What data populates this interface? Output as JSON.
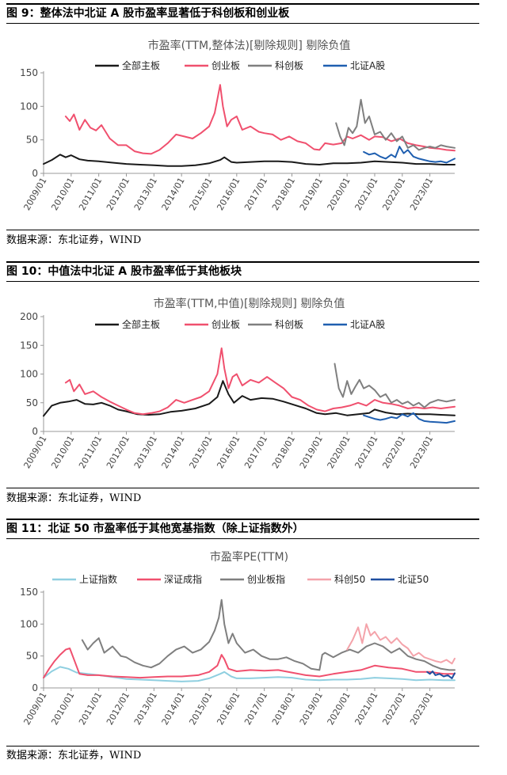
{
  "figures": [
    {
      "caption": "图 9：整体法中北证 A 股市盈率显著低于科创板和创业板",
      "source": "数据来源：东北证券，WIND"
    },
    {
      "caption": "图 10：中值法中北证 A 股市盈率低于其他板块",
      "source": "数据来源：东北证券，WIND"
    },
    {
      "caption": "图 11：北证 50 市盈率低于其他宽基指数（除上证指数外）",
      "source": "数据来源：东北证券，WIND"
    }
  ],
  "chart_data": [
    {
      "type": "line",
      "title": "市盈率(TTM,整体法)[剔除规则] 剔除负值",
      "ylim": [
        0,
        150
      ],
      "yticks": [
        0,
        50,
        100,
        150
      ],
      "x_range": [
        2009.0,
        2023.9
      ],
      "xticks": [
        "2009/01",
        "2010/01",
        "2011/01",
        "2012/01",
        "2013/01",
        "2014/01",
        "2015/01",
        "2016/01",
        "2017/01",
        "2018/01",
        "2019/01",
        "2020/01",
        "2021/01",
        "2022/01",
        "2023/01"
      ],
      "grid": false,
      "legend_position": "top",
      "series": [
        {
          "name": "全部主板",
          "color": "#1a1a1a",
          "x": [
            2009.0,
            2009.3,
            2009.6,
            2009.8,
            2010.0,
            2010.3,
            2010.6,
            2011.0,
            2011.5,
            2012.0,
            2012.5,
            2013.0,
            2013.5,
            2014.0,
            2014.5,
            2015.0,
            2015.4,
            2015.55,
            2015.8,
            2016.0,
            2016.5,
            2017.0,
            2017.5,
            2018.0,
            2018.5,
            2019.0,
            2019.5,
            2020.0,
            2020.5,
            2021.0,
            2021.5,
            2022.0,
            2022.5,
            2023.0,
            2023.5,
            2023.9
          ],
          "y": [
            14,
            20,
            28,
            24,
            27,
            21,
            19,
            18,
            16,
            14,
            13,
            12,
            11,
            11,
            12,
            15,
            20,
            24,
            17,
            16,
            17,
            18,
            18,
            17,
            14,
            13,
            15,
            15,
            16,
            18,
            17,
            16,
            14,
            14,
            13,
            13
          ]
        },
        {
          "name": "创业板",
          "color": "#f0506e",
          "x": [
            2009.8,
            2009.95,
            2010.1,
            2010.3,
            2010.5,
            2010.7,
            2010.9,
            2011.1,
            2011.4,
            2011.7,
            2012.0,
            2012.3,
            2012.6,
            2012.9,
            2013.2,
            2013.5,
            2013.8,
            2014.1,
            2014.4,
            2014.7,
            2015.0,
            2015.2,
            2015.4,
            2015.5,
            2015.65,
            2015.8,
            2016.0,
            2016.2,
            2016.5,
            2016.8,
            2017.0,
            2017.3,
            2017.6,
            2017.9,
            2018.2,
            2018.5,
            2018.8,
            2019.0,
            2019.2,
            2019.5,
            2019.8,
            2020.0,
            2020.2,
            2020.5,
            2020.8,
            2021.0,
            2021.3,
            2021.6,
            2021.9,
            2022.2,
            2022.5,
            2022.8,
            2023.0,
            2023.3,
            2023.6,
            2023.9
          ],
          "y": [
            85,
            78,
            88,
            65,
            80,
            68,
            64,
            72,
            52,
            42,
            42,
            33,
            30,
            29,
            35,
            45,
            58,
            55,
            52,
            60,
            70,
            90,
            132,
            100,
            70,
            80,
            85,
            65,
            70,
            62,
            60,
            58,
            50,
            55,
            48,
            45,
            36,
            35,
            45,
            43,
            45,
            55,
            52,
            57,
            50,
            55,
            54,
            48,
            52,
            45,
            42,
            40,
            38,
            37,
            35,
            34
          ]
        },
        {
          "name": "科创板",
          "color": "#7f7f7f",
          "x": [
            2019.6,
            2019.75,
            2019.9,
            2020.05,
            2020.2,
            2020.35,
            2020.5,
            2020.65,
            2020.8,
            2021.0,
            2021.2,
            2021.4,
            2021.6,
            2021.8,
            2022.0,
            2022.2,
            2022.4,
            2022.6,
            2022.8,
            2023.0,
            2023.2,
            2023.4,
            2023.6,
            2023.9
          ],
          "y": [
            75,
            55,
            42,
            68,
            60,
            70,
            110,
            75,
            85,
            58,
            62,
            50,
            60,
            48,
            55,
            38,
            42,
            35,
            38,
            40,
            38,
            42,
            40,
            38
          ]
        },
        {
          "name": "北证A股",
          "color": "#1f5fb0",
          "x": [
            2020.6,
            2020.8,
            2021.0,
            2021.2,
            2021.4,
            2021.6,
            2021.75,
            2021.9,
            2022.05,
            2022.2,
            2022.4,
            2022.6,
            2022.8,
            2023.0,
            2023.2,
            2023.4,
            2023.6,
            2023.9
          ],
          "y": [
            32,
            28,
            30,
            25,
            22,
            28,
            24,
            40,
            30,
            35,
            25,
            22,
            20,
            18,
            17,
            18,
            16,
            22
          ]
        }
      ]
    },
    {
      "type": "line",
      "title": "市盈率(TTM,中值)[剔除规则] 剔除负值",
      "ylim": [
        0,
        200
      ],
      "yticks": [
        0,
        50,
        100,
        150,
        200
      ],
      "x_range": [
        2009.0,
        2023.9
      ],
      "xticks": [
        "2009/01",
        "2010/01",
        "2011/01",
        "2012/01",
        "2013/01",
        "2014/01",
        "2015/01",
        "2016/01",
        "2017/01",
        "2018/01",
        "2019/01",
        "2020/01",
        "2021/01",
        "2022/01",
        "2023/01"
      ],
      "grid": false,
      "legend_position": "top",
      "series": [
        {
          "name": "全部主板",
          "color": "#1a1a1a",
          "x": [
            2009.0,
            2009.3,
            2009.6,
            2009.9,
            2010.2,
            2010.5,
            2010.8,
            2011.1,
            2011.4,
            2011.7,
            2012.0,
            2012.4,
            2012.8,
            2013.2,
            2013.6,
            2014.0,
            2014.5,
            2015.0,
            2015.3,
            2015.5,
            2015.7,
            2015.9,
            2016.2,
            2016.5,
            2016.9,
            2017.3,
            2017.7,
            2018.1,
            2018.5,
            2018.9,
            2019.2,
            2019.6,
            2020.0,
            2020.4,
            2020.8,
            2021.0,
            2021.4,
            2021.8,
            2022.2,
            2022.6,
            2023.0,
            2023.4,
            2023.9
          ],
          "y": [
            27,
            45,
            50,
            52,
            55,
            48,
            47,
            50,
            45,
            38,
            35,
            30,
            29,
            30,
            34,
            36,
            40,
            48,
            60,
            88,
            65,
            50,
            62,
            55,
            58,
            57,
            52,
            46,
            40,
            32,
            30,
            32,
            28,
            30,
            32,
            38,
            33,
            30,
            31,
            30,
            30,
            29,
            28
          ]
        },
        {
          "name": "创业板",
          "color": "#f0506e",
          "x": [
            2009.8,
            2009.95,
            2010.1,
            2010.3,
            2010.5,
            2010.8,
            2011.1,
            2011.4,
            2011.7,
            2012.0,
            2012.3,
            2012.6,
            2012.9,
            2013.2,
            2013.5,
            2013.8,
            2014.1,
            2014.4,
            2014.7,
            2015.0,
            2015.3,
            2015.45,
            2015.55,
            2015.7,
            2015.85,
            2016.0,
            2016.2,
            2016.5,
            2016.8,
            2017.1,
            2017.4,
            2017.7,
            2018.0,
            2018.3,
            2018.6,
            2018.9,
            2019.2,
            2019.5,
            2019.8,
            2020.1,
            2020.4,
            2020.7,
            2021.0,
            2021.3,
            2021.6,
            2021.9,
            2022.2,
            2022.5,
            2022.8,
            2023.1,
            2023.4,
            2023.7,
            2023.9
          ],
          "y": [
            85,
            90,
            70,
            82,
            65,
            70,
            60,
            52,
            45,
            38,
            32,
            30,
            32,
            35,
            42,
            55,
            50,
            55,
            60,
            70,
            100,
            145,
            110,
            75,
            95,
            100,
            80,
            90,
            85,
            95,
            85,
            75,
            60,
            55,
            45,
            38,
            35,
            40,
            42,
            45,
            50,
            45,
            55,
            50,
            48,
            45,
            40,
            42,
            40,
            42,
            40,
            42,
            43
          ]
        },
        {
          "name": "科创板",
          "color": "#7f7f7f",
          "x": [
            2019.55,
            2019.7,
            2019.85,
            2020.0,
            2020.15,
            2020.3,
            2020.45,
            2020.6,
            2020.8,
            2021.0,
            2021.2,
            2021.4,
            2021.6,
            2021.8,
            2022.0,
            2022.2,
            2022.4,
            2022.6,
            2022.8,
            2023.0,
            2023.3,
            2023.6,
            2023.9
          ],
          "y": [
            118,
            75,
            60,
            88,
            65,
            78,
            90,
            75,
            80,
            72,
            60,
            65,
            50,
            55,
            48,
            52,
            45,
            50,
            42,
            50,
            55,
            52,
            55
          ]
        },
        {
          "name": "北证A股",
          "color": "#1f5fb0",
          "x": [
            2020.6,
            2020.8,
            2021.0,
            2021.2,
            2021.4,
            2021.6,
            2021.8,
            2022.0,
            2022.2,
            2022.4,
            2022.6,
            2022.8,
            2023.0,
            2023.3,
            2023.6,
            2023.9
          ],
          "y": [
            28,
            25,
            22,
            20,
            22,
            25,
            23,
            30,
            26,
            32,
            22,
            18,
            17,
            16,
            15,
            18
          ]
        }
      ]
    },
    {
      "type": "line",
      "title": "市盈率PE(TTM)",
      "ylim": [
        0,
        150
      ],
      "yticks": [
        0,
        50,
        100,
        150
      ],
      "x_range": [
        2009.0,
        2023.9
      ],
      "xticks": [
        "2009/01",
        "2010/01",
        "2011/01",
        "2012/01",
        "2013/01",
        "2014/01",
        "2015/01",
        "2016/01",
        "2017/01",
        "2018/01",
        "2019/01",
        "2020/01",
        "2021/01",
        "2022/01",
        "2023/01"
      ],
      "grid": false,
      "legend_position": "top",
      "series": [
        {
          "name": "上证指数",
          "color": "#8fcfe0",
          "x": [
            2009.0,
            2009.3,
            2009.6,
            2009.9,
            2010.2,
            2010.6,
            2011.0,
            2011.5,
            2012.0,
            2012.5,
            2013.0,
            2013.5,
            2014.0,
            2014.6,
            2015.0,
            2015.4,
            2015.55,
            2015.8,
            2016.0,
            2016.5,
            2017.0,
            2017.5,
            2018.0,
            2018.5,
            2019.0,
            2019.5,
            2020.0,
            2020.5,
            2021.0,
            2021.5,
            2022.0,
            2022.5,
            2023.0,
            2023.5,
            2023.9
          ],
          "y": [
            16,
            26,
            33,
            30,
            24,
            22,
            20,
            17,
            14,
            13,
            12,
            11,
            10,
            11,
            15,
            22,
            25,
            18,
            15,
            15,
            16,
            17,
            16,
            13,
            12,
            13,
            13,
            14,
            16,
            15,
            14,
            12,
            13,
            12,
            12
          ]
        },
        {
          "name": "深证成指",
          "color": "#f0506e",
          "x": [
            2009.0,
            2009.2,
            2009.4,
            2009.6,
            2009.8,
            2009.95,
            2010.1,
            2010.3,
            2010.6,
            2011.0,
            2011.5,
            2012.0,
            2012.5,
            2013.0,
            2013.5,
            2014.0,
            2014.6,
            2015.0,
            2015.3,
            2015.45,
            2015.55,
            2015.7,
            2016.0,
            2016.5,
            2017.0,
            2017.5,
            2018.0,
            2018.5,
            2019.0,
            2019.5,
            2020.0,
            2020.5,
            2021.0,
            2021.5,
            2022.0,
            2022.5,
            2023.0,
            2023.5,
            2023.9
          ],
          "y": [
            16,
            30,
            42,
            52,
            60,
            62,
            45,
            22,
            20,
            20,
            18,
            17,
            16,
            17,
            18,
            18,
            20,
            25,
            35,
            52,
            45,
            30,
            26,
            28,
            27,
            28,
            24,
            20,
            18,
            22,
            25,
            28,
            35,
            32,
            30,
            25,
            25,
            22,
            22
          ]
        },
        {
          "name": "创业板指",
          "color": "#7f7f7f",
          "x": [
            2010.4,
            2010.6,
            2010.8,
            2011.0,
            2011.2,
            2011.5,
            2011.8,
            2012.0,
            2012.3,
            2012.6,
            2012.9,
            2013.2,
            2013.5,
            2013.8,
            2014.1,
            2014.4,
            2014.7,
            2015.0,
            2015.2,
            2015.35,
            2015.45,
            2015.55,
            2015.7,
            2015.85,
            2016.0,
            2016.3,
            2016.6,
            2016.9,
            2017.2,
            2017.5,
            2017.8,
            2018.1,
            2018.4,
            2018.7,
            2019.0,
            2019.1,
            2019.2,
            2019.5,
            2019.8,
            2020.1,
            2020.4,
            2020.7,
            2021.0,
            2021.3,
            2021.6,
            2021.9,
            2022.2,
            2022.5,
            2022.8,
            2023.1,
            2023.4,
            2023.7,
            2023.9
          ],
          "y": [
            75,
            60,
            70,
            78,
            55,
            65,
            50,
            48,
            40,
            35,
            32,
            38,
            50,
            60,
            65,
            55,
            60,
            72,
            90,
            110,
            138,
            100,
            70,
            85,
            70,
            55,
            60,
            50,
            45,
            45,
            48,
            42,
            38,
            30,
            28,
            52,
            55,
            48,
            55,
            60,
            55,
            65,
            70,
            65,
            55,
            62,
            50,
            45,
            42,
            35,
            30,
            28,
            28
          ]
        },
        {
          "name": "科创50",
          "color": "#f4a3aa",
          "x": [
            2020.0,
            2020.2,
            2020.4,
            2020.55,
            2020.7,
            2020.85,
            2021.0,
            2021.2,
            2021.4,
            2021.6,
            2021.8,
            2022.0,
            2022.2,
            2022.4,
            2022.6,
            2022.8,
            2023.0,
            2023.2,
            2023.4,
            2023.6,
            2023.8,
            2023.9
          ],
          "y": [
            60,
            75,
            95,
            70,
            100,
            82,
            88,
            75,
            80,
            70,
            78,
            68,
            62,
            50,
            55,
            48,
            45,
            42,
            40,
            44,
            38,
            46
          ]
        },
        {
          "name": "北证50",
          "color": "#1f4fa0",
          "x": [
            2022.9,
            2023.0,
            2023.1,
            2023.2,
            2023.35,
            2023.5,
            2023.65,
            2023.8,
            2023.9
          ],
          "y": [
            25,
            22,
            26,
            20,
            22,
            18,
            20,
            15,
            23
          ]
        }
      ]
    }
  ]
}
